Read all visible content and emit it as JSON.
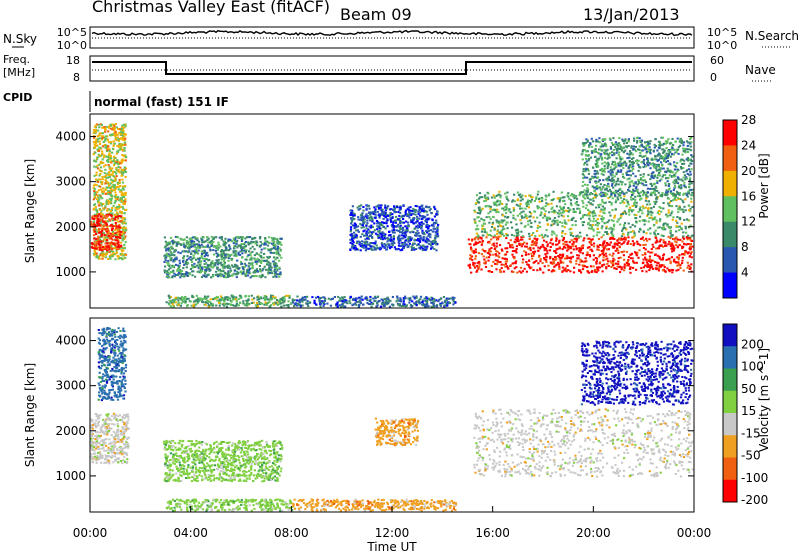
{
  "header": {
    "title": "Christmas Valley East (fitACF)",
    "beam": "Beam 09",
    "date": "13/Jan/2013"
  },
  "sky_panel": {
    "label": "N.Sky",
    "y_ticks": [
      "10^5",
      "10^0"
    ],
    "right_label": "N.Search",
    "right_ticks": [
      "10^5",
      "10^0"
    ]
  },
  "freq_panel": {
    "label_line1": "Freq.",
    "label_line2": "[MHz]",
    "y_ticks": [
      "18",
      "8"
    ],
    "right_label": "Nave",
    "right_ticks": [
      "60",
      "0"
    ]
  },
  "cpid": {
    "label": "CPID",
    "program": "normal (fast) 151 IF"
  },
  "chart_data": [
    {
      "type": "heatmap",
      "name": "power",
      "ylabel": "Slant Range [km]",
      "ylim": [
        200,
        4500
      ],
      "y_ticks": [
        "1000",
        "2000",
        "3000",
        "4000"
      ],
      "colorbar_label": "Power [dB]",
      "colorbar_ticks": [
        "4",
        "8",
        "12",
        "16",
        "20",
        "24",
        "28"
      ],
      "colors": [
        "#0000ff",
        "#2a58b0",
        "#3a8a6a",
        "#60c060",
        "#f0b000",
        "#f06010",
        "#ff0000"
      ],
      "regions": [
        {
          "x": [
            0.1,
            1.4
          ],
          "y": [
            1300,
            4300
          ],
          "level": 0.6
        },
        {
          "x": [
            0.0,
            1.2
          ],
          "y": [
            1500,
            2300
          ],
          "level": 0.95
        },
        {
          "x": [
            2.9,
            7.6
          ],
          "y": [
            900,
            1800
          ],
          "level": 0.35
        },
        {
          "x": [
            3.0,
            8.0
          ],
          "y": [
            250,
            500
          ],
          "level": 0.45
        },
        {
          "x": [
            8.0,
            14.5
          ],
          "y": [
            250,
            480
          ],
          "level": 0.2
        },
        {
          "x": [
            10.3,
            13.8
          ],
          "y": [
            1500,
            2500
          ],
          "level": 0.15
        },
        {
          "x": [
            15.0,
            23.9
          ],
          "y": [
            1000,
            1800
          ],
          "level": 1.0
        },
        {
          "x": [
            15.2,
            23.9
          ],
          "y": [
            1800,
            2800
          ],
          "level": 0.45
        },
        {
          "x": [
            19.5,
            23.9
          ],
          "y": [
            2700,
            4000
          ],
          "level": 0.35
        }
      ]
    },
    {
      "type": "heatmap",
      "name": "velocity",
      "ylabel": "Slant Range [km]",
      "ylim": [
        200,
        4500
      ],
      "y_ticks": [
        "1000",
        "2000",
        "3000",
        "4000"
      ],
      "xlabel": "Time UT",
      "x_ticks": [
        "00:00",
        "04:00",
        "08:00",
        "12:00",
        "16:00",
        "20:00",
        "00:00"
      ],
      "colorbar_label": "Velocity [m s^-1]",
      "colorbar_ticks": [
        "200",
        "100",
        "50",
        "15",
        "-15",
        "-50",
        "-100",
        "-200"
      ],
      "colors": [
        "#1010c0",
        "#2a70b0",
        "#3aa050",
        "#80d040",
        "#c8c8c8",
        "#f0a020",
        "#f06010",
        "#ff0000"
      ],
      "regions": [
        {
          "x": [
            0.0,
            1.5
          ],
          "y": [
            1300,
            2400
          ],
          "level": 4
        },
        {
          "x": [
            0.3,
            1.4
          ],
          "y": [
            2700,
            4300
          ],
          "level": 1
        },
        {
          "x": [
            2.9,
            7.6
          ],
          "y": [
            900,
            1800
          ],
          "level": 3
        },
        {
          "x": [
            3.0,
            8.0
          ],
          "y": [
            250,
            500
          ],
          "level": 3
        },
        {
          "x": [
            8.0,
            14.5
          ],
          "y": [
            250,
            500
          ],
          "level": 5
        },
        {
          "x": [
            11.3,
            13.0
          ],
          "y": [
            1700,
            2300
          ],
          "level": 5
        },
        {
          "x": [
            15.2,
            23.9
          ],
          "y": [
            1000,
            2500
          ],
          "level": 4
        },
        {
          "x": [
            19.5,
            23.9
          ],
          "y": [
            2600,
            4000
          ],
          "level": 0
        }
      ]
    }
  ]
}
